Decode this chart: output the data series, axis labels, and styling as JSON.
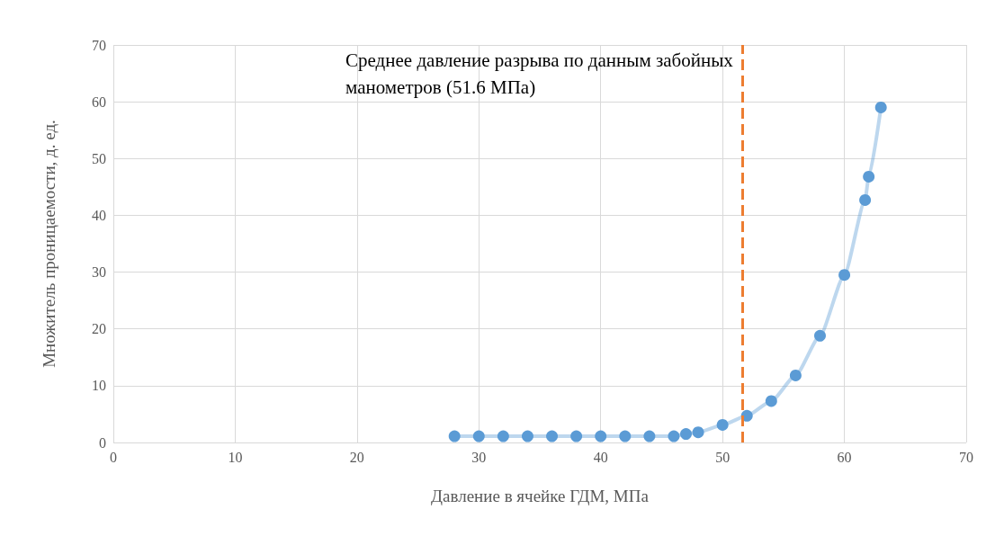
{
  "chart_data": {
    "type": "line",
    "xlabel": "Давление в ячейке ГДМ, МПа",
    "ylabel": "Множитель проницаемости, д. ед.",
    "x": [
      28,
      30,
      32,
      34,
      36,
      38,
      40,
      42,
      44,
      46,
      47,
      48,
      50,
      52,
      54,
      56,
      58,
      60,
      61.7,
      62,
      63
    ],
    "series": [
      {
        "color": "#5b9bd5",
        "values": [
          1.1,
          1.1,
          1.1,
          1.1,
          1.1,
          1.1,
          1.1,
          1.1,
          1.1,
          1.1,
          1.5,
          1.8,
          3.1,
          4.7,
          7.3,
          11.8,
          18.8,
          29.5,
          42.7,
          46.8,
          59
        ]
      }
    ],
    "xlim": [
      0,
      70
    ],
    "xticks": [
      0,
      10,
      20,
      30,
      40,
      50,
      60,
      70
    ],
    "ylim": [
      0,
      70
    ],
    "yticks": [
      0,
      10,
      20,
      30,
      40,
      50,
      60,
      70
    ],
    "ref_lines": [
      {
        "axis": "x",
        "value": 51.6,
        "label": "Среднее давление разрыва по данным забойных манометров (51.6 МПа)",
        "color": "#ed7d31",
        "line_style": "dashed"
      }
    ],
    "grid": true,
    "marker": "circle",
    "line_style": "solid"
  }
}
